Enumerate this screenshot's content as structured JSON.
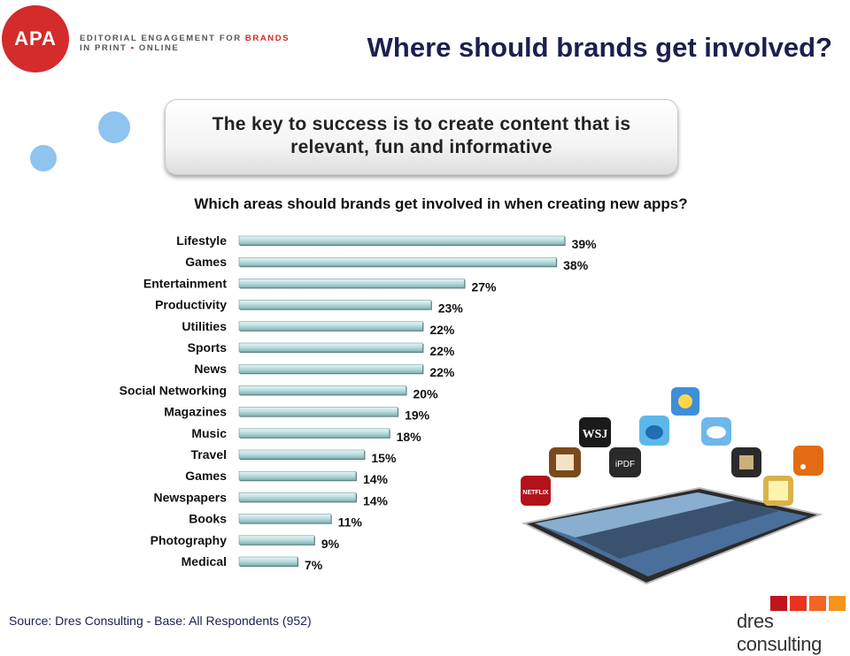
{
  "header": {
    "logo_text": "APA",
    "tagline_line1_a": "EDITORIAL ENGAGEMENT FOR ",
    "tagline_line1_b": "BRANDS",
    "tagline_line2_a": "IN PRINT ",
    "tagline_dot": "•",
    "tagline_line2_b": " ONLINE",
    "title": "Where should brands get involved?"
  },
  "key_message": "The key to success is to create content that is relevant, fun and informative",
  "chart_data": {
    "type": "bar",
    "orientation": "horizontal",
    "title": "Which areas should brands get involved in when creating new apps?",
    "categories": [
      "Lifestyle",
      "Games",
      "Entertainment",
      "Productivity",
      "Utilities",
      "Sports",
      "News",
      "Social Networking",
      "Magazines",
      "Music",
      "Travel",
      "Games",
      "Newspapers",
      "Books",
      "Photography",
      "Medical"
    ],
    "values": [
      39,
      38,
      27,
      23,
      22,
      22,
      22,
      20,
      19,
      18,
      15,
      14,
      14,
      11,
      9,
      7
    ],
    "value_labels": [
      "39%",
      "38%",
      "27%",
      "23%",
      "22%",
      "22%",
      "22%",
      "20%",
      "19%",
      "18%",
      "15%",
      "14%",
      "14%",
      "11%",
      "9%",
      "7%"
    ],
    "xlim": [
      0,
      40
    ],
    "grid": false,
    "bar_color": "#b9dcdc"
  },
  "illustration": {
    "app_icons": [
      "weather-icon",
      "twitter-icon",
      "cloud-icon",
      "wsj-icon",
      "ibooks-icon",
      "ipdf-icon",
      "theater-icon",
      "rss-icon",
      "netflix-icon",
      "notes-icon"
    ],
    "wsj_text": "WSJ",
    "ipdf_text": "iPDF",
    "netflix_text": "NETFLIX"
  },
  "footer": {
    "source": "Source: Dres Consulting - Base: All Respondents (952)",
    "brand": "dres consulting",
    "brand_colors": [
      "#c0141e",
      "#e8331e",
      "#f26522",
      "#f7941d"
    ]
  }
}
